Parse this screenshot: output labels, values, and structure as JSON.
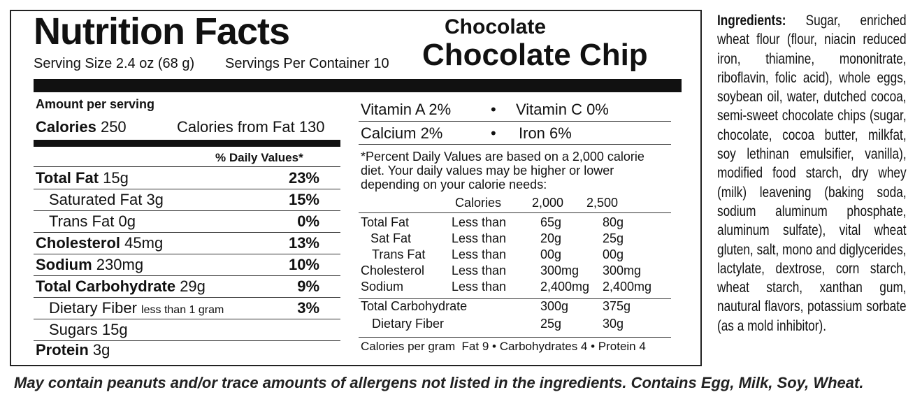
{
  "header": {
    "title": "Nutrition Facts",
    "serving_size": "Serving Size 2.4 oz (68 g)",
    "servings_per_container": "Servings Per Container 10",
    "flavor_line_1": "Chocolate",
    "flavor_line_2": "Chocolate Chip"
  },
  "amount_per_serving": "Amount per serving",
  "calories": {
    "label": "Calories",
    "value": "250",
    "from_fat": "Calories from Fat 130"
  },
  "daily_values_header": "% Daily Values*",
  "nutrients": [
    {
      "name": "Total Fat",
      "amount": "15g",
      "dv": "23%"
    },
    {
      "name": "Saturated Fat",
      "amount": "3g",
      "dv": "15%"
    },
    {
      "name": "Trans Fat",
      "amount": "0g",
      "dv": "0%"
    },
    {
      "name": "Cholesterol",
      "amount": "45mg",
      "dv": "13%"
    },
    {
      "name": "Sodium",
      "amount": "230mg",
      "dv": "10%"
    },
    {
      "name": "Total Carbohydrate",
      "amount": "29g",
      "dv": "9%"
    },
    {
      "name": "Dietary Fiber",
      "amount": "less than 1 gram",
      "dv": "3%"
    },
    {
      "name": "Sugars",
      "amount": "15g"
    },
    {
      "name": "Protein",
      "amount": "3g"
    }
  ],
  "vitamins": [
    "Vitamin A 2%",
    "Vitamin C 0%",
    "Calcium 2%",
    "Iron 6%"
  ],
  "footnote": "*Percent Daily Values are based on a 2,000 calorie diet. Your daily values may be higher or lower depending on your calorie needs:",
  "dv_table": {
    "header": [
      "Calories",
      "2,000",
      "2,500"
    ],
    "rows": [
      [
        "Total Fat",
        "Less than",
        "65g",
        "80g"
      ],
      [
        "Sat Fat",
        "Less than",
        "20g",
        "25g"
      ],
      [
        "Trans Fat",
        "Less than",
        "00g",
        "00g"
      ],
      [
        "Cholesterol",
        "Less than",
        "300mg",
        "300mg"
      ],
      [
        "Sodium",
        "Less than",
        "2,400mg",
        "2,400mg"
      ],
      [
        "Total Carbohydrate",
        "",
        "300g",
        "375g"
      ],
      [
        "Dietary Fiber",
        "",
        "25g",
        "30g"
      ]
    ]
  },
  "calories_per_gram": "Calories per gram  Fat 9 • Carbohydrates 4 • Protein 4",
  "ingredients": {
    "label": "Ingredients:",
    "text": "Sugar, enriched wheat flour (flour, niacin reduced iron, thiamine, mononitrate, riboflavin, folic acid), whole eggs, soybean oil, water, dutched cocoa, semi-sweet chocolate chips (sugar, chocolate, cocoa butter, milkfat, soy lethinan emulsifier, vanilla), modified food starch, dry whey (milk) leavening (baking soda, sodium aluminum phosphate, aluminum sulfate), vital wheat gluten, salt, mono and diglycerides, lactylate, dextrose, corn starch, wheat starch, xanthan gum, nautural flavors, potassium sorbate (as a mold inhibitor)."
  },
  "allergen_statement": "May contain peanuts and/or trace amounts of allergens not listed in the ingredients. Contains Egg, Milk, Soy, Wheat."
}
